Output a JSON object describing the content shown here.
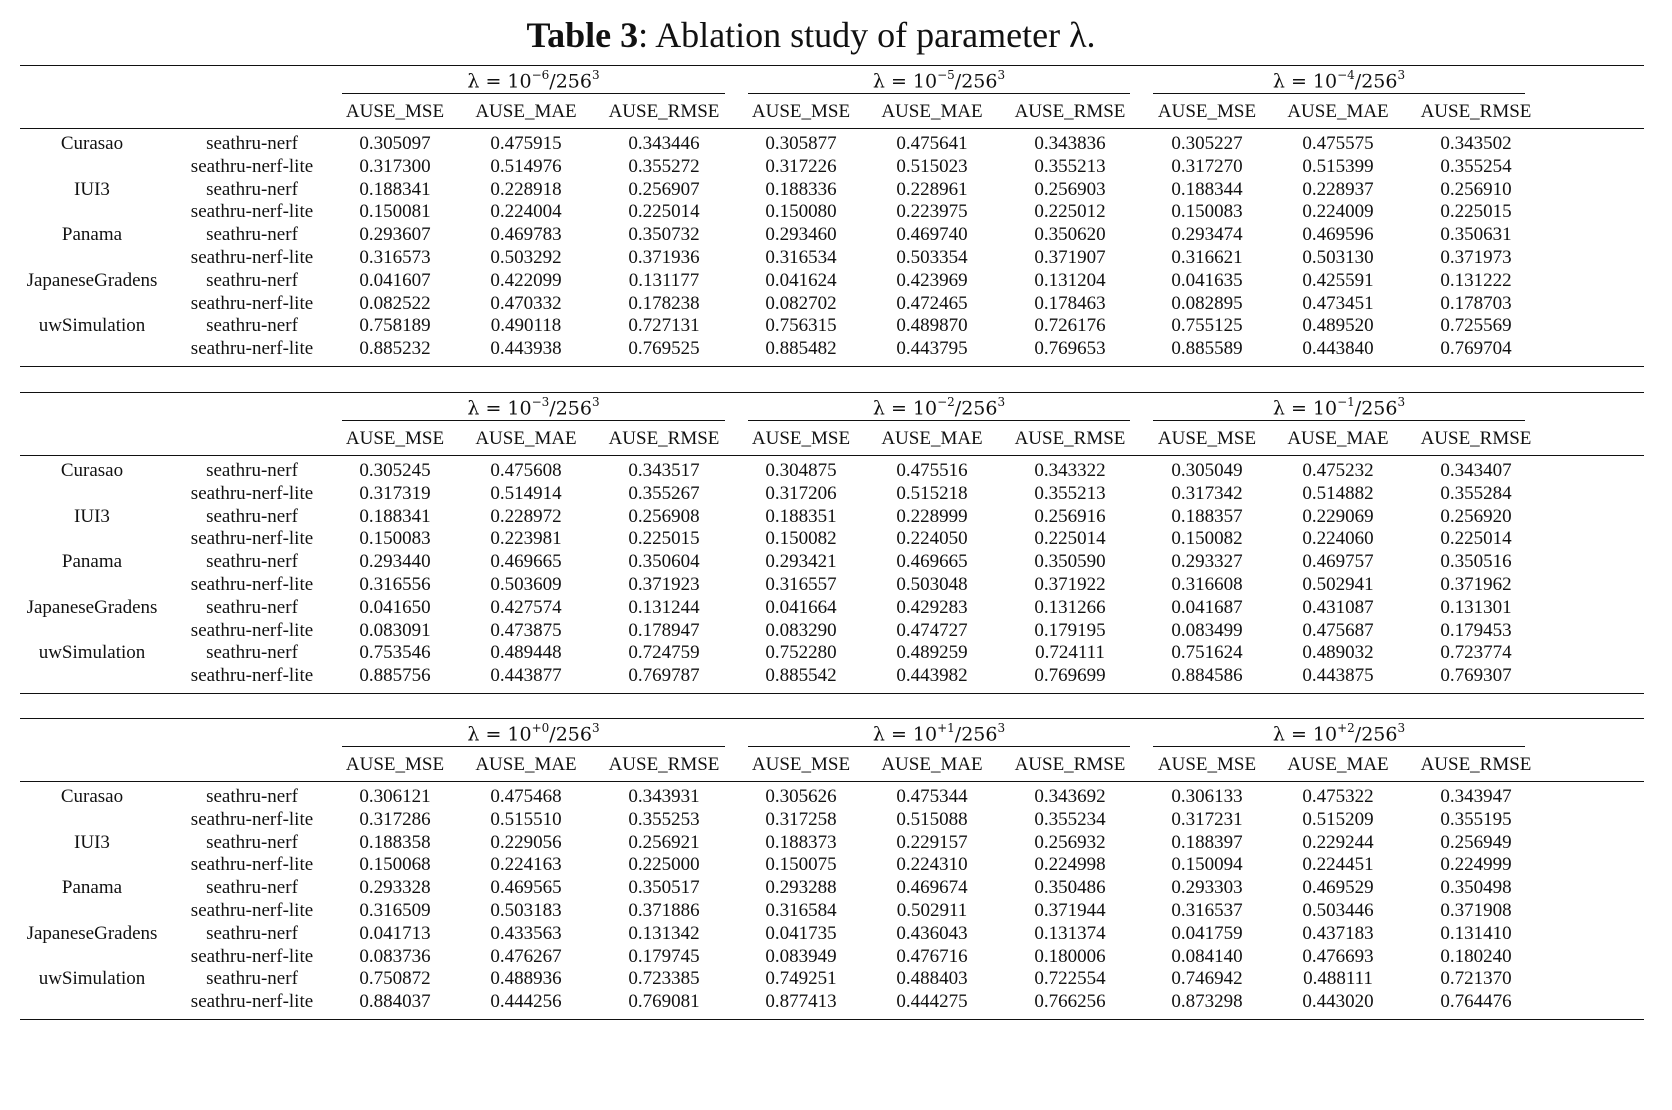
{
  "caption": {
    "label": "Table 3",
    "text": ": Ablation study of parameter λ."
  },
  "metric_headers": [
    "AUSE_MSE",
    "AUSE_MAE",
    "AUSE_RMSE"
  ],
  "datasets": [
    "Curasao",
    "IUI3",
    "Panama",
    "JapaneseGradens",
    "uwSimulation"
  ],
  "methods": [
    "seathru-nerf",
    "seathru-nerf-lite"
  ],
  "panels": [
    {
      "groups": [
        {
          "lambda_text": "λ = 10",
          "exp": "−6",
          "denom": "/256",
          "denom_exp": "3"
        },
        {
          "lambda_text": "λ = 10",
          "exp": "−5",
          "denom": "/256",
          "denom_exp": "3"
        },
        {
          "lambda_text": "λ = 10",
          "exp": "−4",
          "denom": "/256",
          "denom_exp": "3"
        }
      ],
      "rows": [
        [
          "0.305097",
          "0.475915",
          "0.343446",
          "0.305877",
          "0.475641",
          "0.343836",
          "0.305227",
          "0.475575",
          "0.343502"
        ],
        [
          "0.317300",
          "0.514976",
          "0.355272",
          "0.317226",
          "0.515023",
          "0.355213",
          "0.317270",
          "0.515399",
          "0.355254"
        ],
        [
          "0.188341",
          "0.228918",
          "0.256907",
          "0.188336",
          "0.228961",
          "0.256903",
          "0.188344",
          "0.228937",
          "0.256910"
        ],
        [
          "0.150081",
          "0.224004",
          "0.225014",
          "0.150080",
          "0.223975",
          "0.225012",
          "0.150083",
          "0.224009",
          "0.225015"
        ],
        [
          "0.293607",
          "0.469783",
          "0.350732",
          "0.293460",
          "0.469740",
          "0.350620",
          "0.293474",
          "0.469596",
          "0.350631"
        ],
        [
          "0.316573",
          "0.503292",
          "0.371936",
          "0.316534",
          "0.503354",
          "0.371907",
          "0.316621",
          "0.503130",
          "0.371973"
        ],
        [
          "0.041607",
          "0.422099",
          "0.131177",
          "0.041624",
          "0.423969",
          "0.131204",
          "0.041635",
          "0.425591",
          "0.131222"
        ],
        [
          "0.082522",
          "0.470332",
          "0.178238",
          "0.082702",
          "0.472465",
          "0.178463",
          "0.082895",
          "0.473451",
          "0.178703"
        ],
        [
          "0.758189",
          "0.490118",
          "0.727131",
          "0.756315",
          "0.489870",
          "0.726176",
          "0.755125",
          "0.489520",
          "0.725569"
        ],
        [
          "0.885232",
          "0.443938",
          "0.769525",
          "0.885482",
          "0.443795",
          "0.769653",
          "0.885589",
          "0.443840",
          "0.769704"
        ]
      ]
    },
    {
      "groups": [
        {
          "lambda_text": "λ = 10",
          "exp": "−3",
          "denom": "/256",
          "denom_exp": "3"
        },
        {
          "lambda_text": "λ = 10",
          "exp": "−2",
          "denom": "/256",
          "denom_exp": "3"
        },
        {
          "lambda_text": "λ = 10",
          "exp": "−1",
          "denom": "/256",
          "denom_exp": "3"
        }
      ],
      "rows": [
        [
          "0.305245",
          "0.475608",
          "0.343517",
          "0.304875",
          "0.475516",
          "0.343322",
          "0.305049",
          "0.475232",
          "0.343407"
        ],
        [
          "0.317319",
          "0.514914",
          "0.355267",
          "0.317206",
          "0.515218",
          "0.355213",
          "0.317342",
          "0.514882",
          "0.355284"
        ],
        [
          "0.188341",
          "0.228972",
          "0.256908",
          "0.188351",
          "0.228999",
          "0.256916",
          "0.188357",
          "0.229069",
          "0.256920"
        ],
        [
          "0.150083",
          "0.223981",
          "0.225015",
          "0.150082",
          "0.224050",
          "0.225014",
          "0.150082",
          "0.224060",
          "0.225014"
        ],
        [
          "0.293440",
          "0.469665",
          "0.350604",
          "0.293421",
          "0.469665",
          "0.350590",
          "0.293327",
          "0.469757",
          "0.350516"
        ],
        [
          "0.316556",
          "0.503609",
          "0.371923",
          "0.316557",
          "0.503048",
          "0.371922",
          "0.316608",
          "0.502941",
          "0.371962"
        ],
        [
          "0.041650",
          "0.427574",
          "0.131244",
          "0.041664",
          "0.429283",
          "0.131266",
          "0.041687",
          "0.431087",
          "0.131301"
        ],
        [
          "0.083091",
          "0.473875",
          "0.178947",
          "0.083290",
          "0.474727",
          "0.179195",
          "0.083499",
          "0.475687",
          "0.179453"
        ],
        [
          "0.753546",
          "0.489448",
          "0.724759",
          "0.752280",
          "0.489259",
          "0.724111",
          "0.751624",
          "0.489032",
          "0.723774"
        ],
        [
          "0.885756",
          "0.443877",
          "0.769787",
          "0.885542",
          "0.443982",
          "0.769699",
          "0.884586",
          "0.443875",
          "0.769307"
        ]
      ]
    },
    {
      "groups": [
        {
          "lambda_text": "λ = 10",
          "exp": "+0",
          "denom": "/256",
          "denom_exp": "3"
        },
        {
          "lambda_text": "λ = 10",
          "exp": "+1",
          "denom": "/256",
          "denom_exp": "3"
        },
        {
          "lambda_text": "λ = 10",
          "exp": "+2",
          "denom": "/256",
          "denom_exp": "3"
        }
      ],
      "rows": [
        [
          "0.306121",
          "0.475468",
          "0.343931",
          "0.305626",
          "0.475344",
          "0.343692",
          "0.306133",
          "0.475322",
          "0.343947"
        ],
        [
          "0.317286",
          "0.515510",
          "0.355253",
          "0.317258",
          "0.515088",
          "0.355234",
          "0.317231",
          "0.515209",
          "0.355195"
        ],
        [
          "0.188358",
          "0.229056",
          "0.256921",
          "0.188373",
          "0.229157",
          "0.256932",
          "0.188397",
          "0.229244",
          "0.256949"
        ],
        [
          "0.150068",
          "0.224163",
          "0.225000",
          "0.150075",
          "0.224310",
          "0.224998",
          "0.150094",
          "0.224451",
          "0.224999"
        ],
        [
          "0.293328",
          "0.469565",
          "0.350517",
          "0.293288",
          "0.469674",
          "0.350486",
          "0.293303",
          "0.469529",
          "0.350498"
        ],
        [
          "0.316509",
          "0.503183",
          "0.371886",
          "0.316584",
          "0.502911",
          "0.371944",
          "0.316537",
          "0.503446",
          "0.371908"
        ],
        [
          "0.041713",
          "0.433563",
          "0.131342",
          "0.041735",
          "0.436043",
          "0.131374",
          "0.041759",
          "0.437183",
          "0.131410"
        ],
        [
          "0.083736",
          "0.476267",
          "0.179745",
          "0.083949",
          "0.476716",
          "0.180006",
          "0.084140",
          "0.476693",
          "0.180240"
        ],
        [
          "0.750872",
          "0.488936",
          "0.723385",
          "0.749251",
          "0.488403",
          "0.722554",
          "0.746942",
          "0.488111",
          "0.721370"
        ],
        [
          "0.884037",
          "0.444256",
          "0.769081",
          "0.877413",
          "0.444275",
          "0.766256",
          "0.873298",
          "0.443020",
          "0.764476"
        ]
      ]
    }
  ]
}
